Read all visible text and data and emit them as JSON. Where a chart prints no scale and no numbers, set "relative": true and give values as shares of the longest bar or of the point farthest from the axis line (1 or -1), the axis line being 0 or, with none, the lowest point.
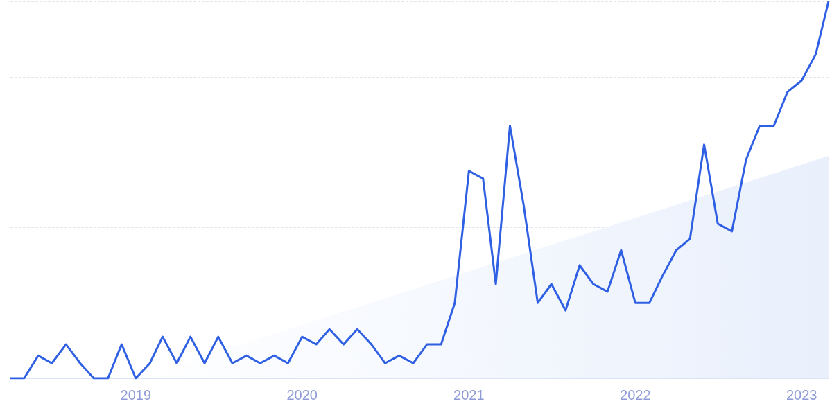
{
  "chart_data": {
    "type": "line",
    "relative": true,
    "grid": "y",
    "marker": "none",
    "line_style": "solid",
    "x": [
      "2018-04",
      "2018-05",
      "2018-06",
      "2018-07",
      "2018-08",
      "2018-09",
      "2018-10",
      "2018-11",
      "2018-12",
      "2019-01",
      "2019-02",
      "2019-03",
      "2019-04",
      "2019-05",
      "2019-06",
      "2019-07",
      "2019-08",
      "2019-09",
      "2019-10",
      "2019-11",
      "2019-12",
      "2020-01",
      "2020-02",
      "2020-03",
      "2020-04",
      "2020-05",
      "2020-06",
      "2020-07",
      "2020-08",
      "2020-09",
      "2020-10",
      "2020-11",
      "2020-12",
      "2021-01",
      "2021-02",
      "2021-03",
      "2021-04",
      "2021-05",
      "2021-06",
      "2021-07",
      "2021-08",
      "2021-09",
      "2021-10",
      "2021-11",
      "2021-12",
      "2022-01",
      "2022-02",
      "2022-03",
      "2022-04",
      "2022-05",
      "2022-06",
      "2022-07",
      "2022-08",
      "2022-09",
      "2022-10",
      "2022-11",
      "2022-12",
      "2023-01",
      "2023-02",
      "2023-03"
    ],
    "xlim": [
      "2018-04",
      "2023-03"
    ],
    "xticks": [
      "2019",
      "2020",
      "2021",
      "2022",
      "2023"
    ],
    "series": [
      {
        "type": "area",
        "color": "#e9f0fc",
        "x": [
          "2019-01",
          "2023-03"
        ],
        "values": [
          0,
          0.59
        ]
      },
      {
        "color": "#2f5fe3",
        "values": [
          0,
          0,
          0.06,
          0.04,
          0.09,
          0.04,
          0,
          0,
          0.09,
          0,
          0.04,
          0.11,
          0.04,
          0.11,
          0.04,
          0.11,
          0.04,
          0.06,
          0.04,
          0.06,
          0.04,
          0.11,
          0.09,
          0.13,
          0.09,
          0.13,
          0.09,
          0.04,
          0.06,
          0.04,
          0.09,
          0.09,
          0.2,
          0.55,
          0.53,
          0.25,
          0.67,
          0.46,
          0.2,
          0.25,
          0.18,
          0.3,
          0.25,
          0.23,
          0.34,
          0.2,
          0.2,
          0.27,
          0.34,
          0.37,
          0.62,
          0.41,
          0.39,
          0.58,
          0.67,
          0.67,
          0.76,
          0.79,
          0.86,
          1
        ]
      }
    ]
  }
}
